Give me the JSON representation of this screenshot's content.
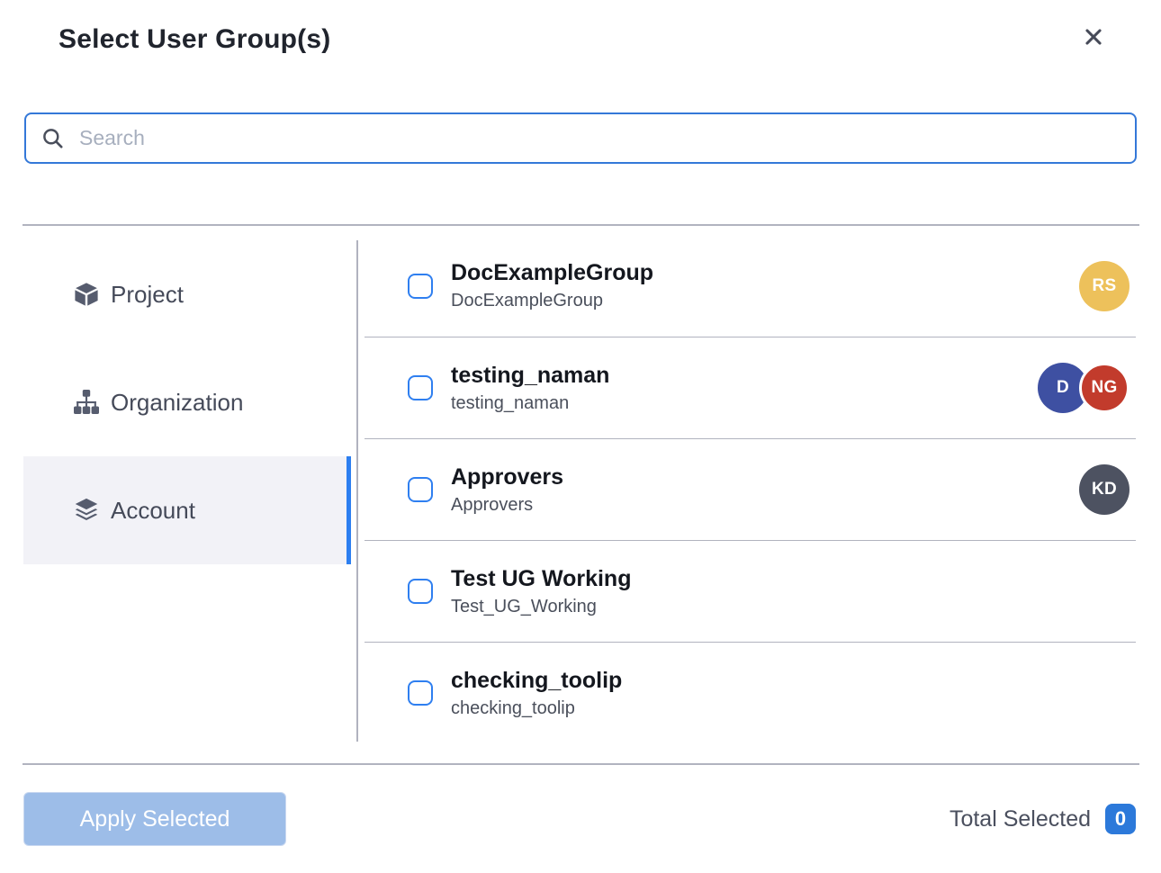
{
  "modal": {
    "title": "Select User Group(s)"
  },
  "search": {
    "placeholder": "Search",
    "value": ""
  },
  "sidebar": {
    "tabs": [
      {
        "label": "Project",
        "icon": "cube-icon",
        "active": false
      },
      {
        "label": "Organization",
        "icon": "org-chart-icon",
        "active": false
      },
      {
        "label": "Account",
        "icon": "layers-icon",
        "active": true
      }
    ]
  },
  "groups": [
    {
      "name": "DocExampleGroup",
      "subtitle": "DocExampleGroup",
      "checked": false,
      "avatars": [
        {
          "initials": "RS",
          "color": "#edc15b"
        }
      ]
    },
    {
      "name": "testing_naman",
      "subtitle": "testing_naman",
      "checked": false,
      "avatars": [
        {
          "initials": "D",
          "color": "#3e50a2"
        },
        {
          "initials": "NG",
          "color": "#c23b2c"
        }
      ]
    },
    {
      "name": "Approvers",
      "subtitle": "Approvers",
      "checked": false,
      "avatars": [
        {
          "initials": "KD",
          "color": "#4d5261"
        }
      ]
    },
    {
      "name": "Test UG Working",
      "subtitle": "Test_UG_Working",
      "checked": false,
      "avatars": []
    },
    {
      "name": "checking_toolip",
      "subtitle": "checking_toolip",
      "checked": false,
      "avatars": []
    }
  ],
  "footer": {
    "apply_label": "Apply Selected",
    "total_label": "Total Selected",
    "total_count": "0"
  },
  "colors": {
    "accent_blue": "#2d7ff0",
    "search_border": "#3478d8",
    "divider": "#b1b3bf",
    "active_tab_bg": "#f2f2f7",
    "apply_button_bg": "#9dbde8",
    "badge_bg": "#2c79da",
    "icon_gray": "#565c6e"
  }
}
